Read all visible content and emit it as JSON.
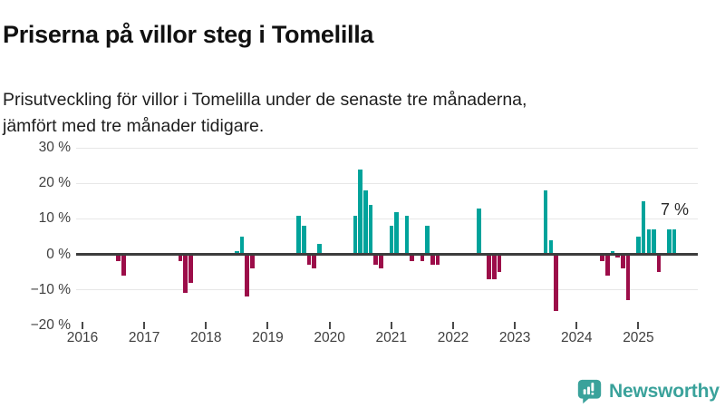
{
  "header": {
    "title": "Priserna på villor steg i Tomelilla",
    "subtitle": "Prisutveckling för villor i Tomelilla under de senaste tre månaderna, jämfört med tre månader tidigare.",
    "subtitle_lines": [
      "Prisutveckling för villor i Tomelilla under de senaste tre månaderna,",
      "jämfört med tre månader tidigare."
    ]
  },
  "chart_data": {
    "type": "bar",
    "title": "Priserna på villor steg i Tomelilla",
    "unit": "%",
    "ylim": [
      -20,
      30
    ],
    "grid": "horizontal",
    "yticks": [
      {
        "value": 30,
        "label": "30 %"
      },
      {
        "value": 20,
        "label": "20 %"
      },
      {
        "value": 10,
        "label": "10 %"
      },
      {
        "value": 0,
        "label": "0 %"
      },
      {
        "value": -10,
        "label": "−10 %"
      },
      {
        "value": -20,
        "label": "−20 %"
      }
    ],
    "xticks": [
      "2016",
      "2017",
      "2018",
      "2019",
      "2020",
      "2021",
      "2022",
      "2023",
      "2024",
      "2025"
    ],
    "x_range_months": [
      "2016-01",
      "2025-10"
    ],
    "colors": {
      "positive": "#00a39b",
      "negative": "#9c0d49"
    },
    "bars": [
      {
        "month": "2016-08",
        "value": -2
      },
      {
        "month": "2016-09",
        "value": -6
      },
      {
        "month": "2017-08",
        "value": -2
      },
      {
        "month": "2017-09",
        "value": -11
      },
      {
        "month": "2017-10",
        "value": -8
      },
      {
        "month": "2018-07",
        "value": 1
      },
      {
        "month": "2018-08",
        "value": 5
      },
      {
        "month": "2018-09",
        "value": -12
      },
      {
        "month": "2018-10",
        "value": -4
      },
      {
        "month": "2019-07",
        "value": 11
      },
      {
        "month": "2019-08",
        "value": 8
      },
      {
        "month": "2019-09",
        "value": -3
      },
      {
        "month": "2019-10",
        "value": -4
      },
      {
        "month": "2019-11",
        "value": 3
      },
      {
        "month": "2020-06",
        "value": 11
      },
      {
        "month": "2020-07",
        "value": 24
      },
      {
        "month": "2020-08",
        "value": 18
      },
      {
        "month": "2020-09",
        "value": 14
      },
      {
        "month": "2020-10",
        "value": -3
      },
      {
        "month": "2020-11",
        "value": -4
      },
      {
        "month": "2021-01",
        "value": 8
      },
      {
        "month": "2021-02",
        "value": 12
      },
      {
        "month": "2021-04",
        "value": 11
      },
      {
        "month": "2021-05",
        "value": -2
      },
      {
        "month": "2021-07",
        "value": -2
      },
      {
        "month": "2021-08",
        "value": 8
      },
      {
        "month": "2021-09",
        "value": -3
      },
      {
        "month": "2021-10",
        "value": -3
      },
      {
        "month": "2022-06",
        "value": 13
      },
      {
        "month": "2022-08",
        "value": -7
      },
      {
        "month": "2022-09",
        "value": -7
      },
      {
        "month": "2022-10",
        "value": -5
      },
      {
        "month": "2023-07",
        "value": 18
      },
      {
        "month": "2023-08",
        "value": 4
      },
      {
        "month": "2023-09",
        "value": -16
      },
      {
        "month": "2024-06",
        "value": -2
      },
      {
        "month": "2024-07",
        "value": -6
      },
      {
        "month": "2024-08",
        "value": 1
      },
      {
        "month": "2024-09",
        "value": -1
      },
      {
        "month": "2024-10",
        "value": -4
      },
      {
        "month": "2024-11",
        "value": -13
      },
      {
        "month": "2025-01",
        "value": 5
      },
      {
        "month": "2025-02",
        "value": 15
      },
      {
        "month": "2025-03",
        "value": 7
      },
      {
        "month": "2025-04",
        "value": 7
      },
      {
        "month": "2025-05",
        "value": -5
      },
      {
        "month": "2025-07",
        "value": 7
      },
      {
        "month": "2025-08",
        "value": 7
      }
    ],
    "annotation": {
      "text": "7 %",
      "value": 7,
      "month": "2025-08"
    },
    "legend": []
  },
  "footer": {
    "brand": "Newsworthy",
    "logo_icon": "newsworthy-speech-bubble-barchart-icon",
    "brand_color": "#3aa29b"
  }
}
